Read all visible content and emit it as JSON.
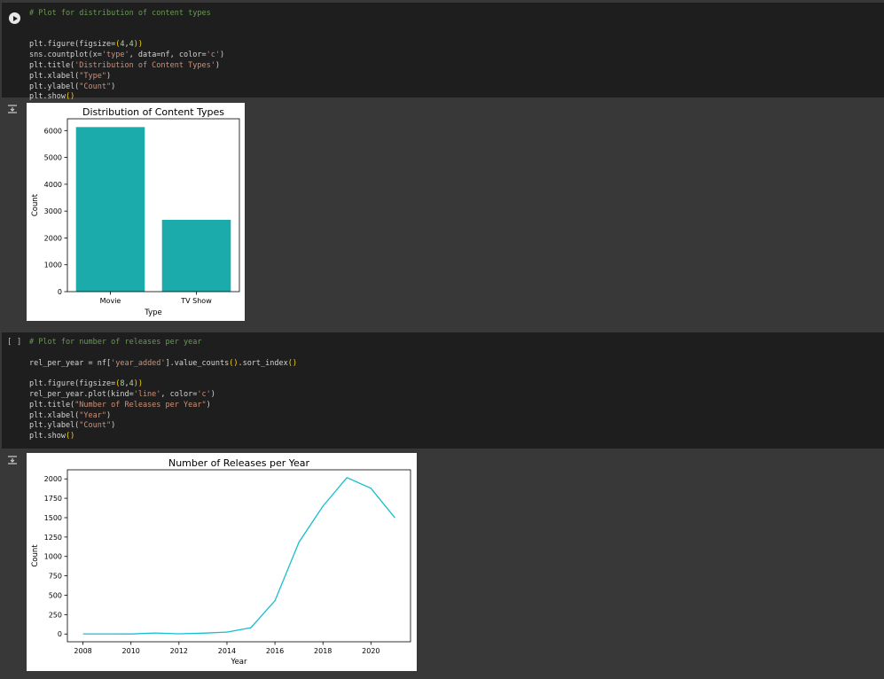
{
  "cell1": {
    "lines": [
      [
        {
          "t": "# Plot for distribution of content types",
          "c": "cmt"
        }
      ],
      [],
      [],
      [
        {
          "t": "plt.figure(figsize="
        },
        {
          "t": "(",
          "c": "paren"
        },
        {
          "t": "4",
          "c": "num"
        },
        {
          "t": ","
        },
        {
          "t": "4",
          "c": "num"
        },
        {
          "t": ")",
          "c": "paren"
        },
        {
          "t": ")",
          "c": "paren"
        }
      ],
      [
        {
          "t": "sns.countplot(x="
        },
        {
          "t": "'type'",
          "c": "str"
        },
        {
          "t": ", data=nf, color="
        },
        {
          "t": "'c'",
          "c": "str"
        },
        {
          "t": ")"
        }
      ],
      [
        {
          "t": "plt.title("
        },
        {
          "t": "'Distribution of Content Types'",
          "c": "str"
        },
        {
          "t": ")"
        }
      ],
      [
        {
          "t": "plt.xlabel("
        },
        {
          "t": "\"Type\"",
          "c": "str"
        },
        {
          "t": ")"
        }
      ],
      [
        {
          "t": "plt.ylabel("
        },
        {
          "t": "\"Count\"",
          "c": "str"
        },
        {
          "t": ")"
        }
      ],
      [
        {
          "t": "plt.show"
        },
        {
          "t": "()",
          "c": "paren"
        }
      ]
    ]
  },
  "cell2": {
    "bracket": "[ ]",
    "lines": [
      [
        {
          "t": "# Plot for number of releases per year",
          "c": "cmt"
        }
      ],
      [],
      [
        {
          "t": "rel_per_year = nf["
        },
        {
          "t": "'year_added'",
          "c": "str"
        },
        {
          "t": "].value_counts"
        },
        {
          "t": "()",
          "c": "paren"
        },
        {
          "t": ".sort_index"
        },
        {
          "t": "()",
          "c": "paren"
        }
      ],
      [],
      [
        {
          "t": "plt.figure(figsize="
        },
        {
          "t": "(",
          "c": "paren"
        },
        {
          "t": "8",
          "c": "num"
        },
        {
          "t": ","
        },
        {
          "t": "4",
          "c": "num"
        },
        {
          "t": ")",
          "c": "paren"
        },
        {
          "t": ")",
          "c": "paren"
        }
      ],
      [
        {
          "t": "rel_per_year.plot(kind="
        },
        {
          "t": "'line'",
          "c": "str"
        },
        {
          "t": ", color="
        },
        {
          "t": "'c'",
          "c": "str"
        },
        {
          "t": ")"
        }
      ],
      [
        {
          "t": "plt.title("
        },
        {
          "t": "\"Number of Releases per Year\"",
          "c": "str"
        },
        {
          "t": ")"
        }
      ],
      [
        {
          "t": "plt.xlabel("
        },
        {
          "t": "\"Year\"",
          "c": "str"
        },
        {
          "t": ")"
        }
      ],
      [
        {
          "t": "plt.ylabel("
        },
        {
          "t": "\"Count\"",
          "c": "str"
        },
        {
          "t": ")"
        }
      ],
      [
        {
          "t": "plt.show"
        },
        {
          "t": "()",
          "c": "paren"
        }
      ]
    ]
  },
  "chart_data": [
    {
      "type": "bar",
      "title": "Distribution of Content Types",
      "xlabel": "Type",
      "ylabel": "Count",
      "categories": [
        "Movie",
        "TV Show"
      ],
      "values": [
        6131,
        2676
      ],
      "ylim": [
        0,
        6440
      ],
      "yticks": [
        0,
        1000,
        2000,
        3000,
        4000,
        5000,
        6000
      ],
      "color": "#1aabaa",
      "grid": false
    },
    {
      "type": "line",
      "title": "Number of Releases per Year",
      "xlabel": "Year",
      "ylabel": "Count",
      "x": [
        2008,
        2009,
        2010,
        2011,
        2012,
        2013,
        2014,
        2015,
        2016,
        2017,
        2018,
        2019,
        2020,
        2021
      ],
      "y": [
        2,
        2,
        1,
        13,
        3,
        11,
        24,
        82,
        429,
        1185,
        1649,
        2016,
        1879,
        1498
      ],
      "xlim": [
        2007.35,
        2021.65
      ],
      "ylim": [
        -100,
        2117
      ],
      "xticks": [
        2008,
        2010,
        2012,
        2014,
        2016,
        2018,
        2020
      ],
      "yticks": [
        0,
        250,
        500,
        750,
        1000,
        1250,
        1500,
        1750,
        2000
      ],
      "color": "#17becf",
      "grid": false
    }
  ]
}
